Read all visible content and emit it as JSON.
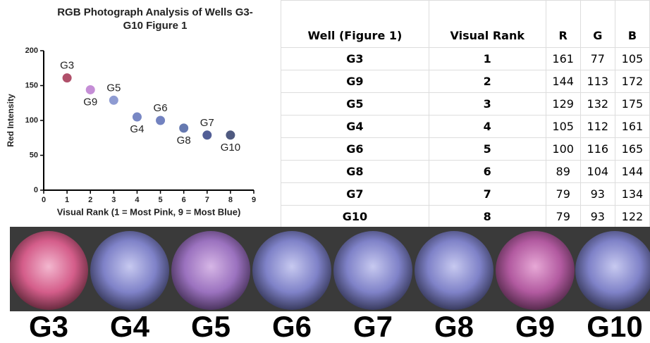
{
  "chart_data": {
    "type": "scatter",
    "title": "RGB Photograph Analysis of Wells G3-G10 Figure 1",
    "x_label": "Visual Rank (1 = Most Pink, 9 = Most Blue)",
    "y_label": "Red Intensity",
    "x": [
      1,
      2,
      3,
      4,
      5,
      6,
      7,
      8
    ],
    "values": [
      161,
      144,
      129,
      105,
      100,
      89,
      79,
      79
    ],
    "point_labels": [
      "G3",
      "G9",
      "G5",
      "G4",
      "G6",
      "G8",
      "G7",
      "G10"
    ],
    "colors": [
      "#b0506a",
      "#c58ed6",
      "#8e9bd2",
      "#7887c4",
      "#7282c0",
      "#6679b0",
      "#525e96",
      "#4f5a80"
    ],
    "xlim": [
      0,
      9
    ],
    "xticks": [
      0,
      1,
      2,
      3,
      4,
      5,
      6,
      7,
      8,
      9
    ],
    "ylim": [
      0,
      200
    ],
    "yticks": [
      0,
      50,
      100,
      150,
      200
    ]
  },
  "table": {
    "header": [
      "Well (Figure 1)",
      "Visual Rank",
      "R",
      "G",
      "B"
    ],
    "rows": [
      [
        "G3",
        1,
        161,
        77,
        105
      ],
      [
        "G9",
        2,
        144,
        113,
        172
      ],
      [
        "G5",
        3,
        129,
        132,
        175
      ],
      [
        "G4",
        4,
        105,
        112,
        161
      ],
      [
        "G6",
        5,
        100,
        116,
        165
      ],
      [
        "G8",
        6,
        89,
        104,
        144
      ],
      [
        "G7",
        7,
        79,
        93,
        134
      ],
      [
        "G10",
        8,
        79,
        93,
        122
      ]
    ]
  },
  "photo": {
    "labels": [
      "G3",
      "G4",
      "G5",
      "G6",
      "G7",
      "G8",
      "G9",
      "G10"
    ]
  }
}
